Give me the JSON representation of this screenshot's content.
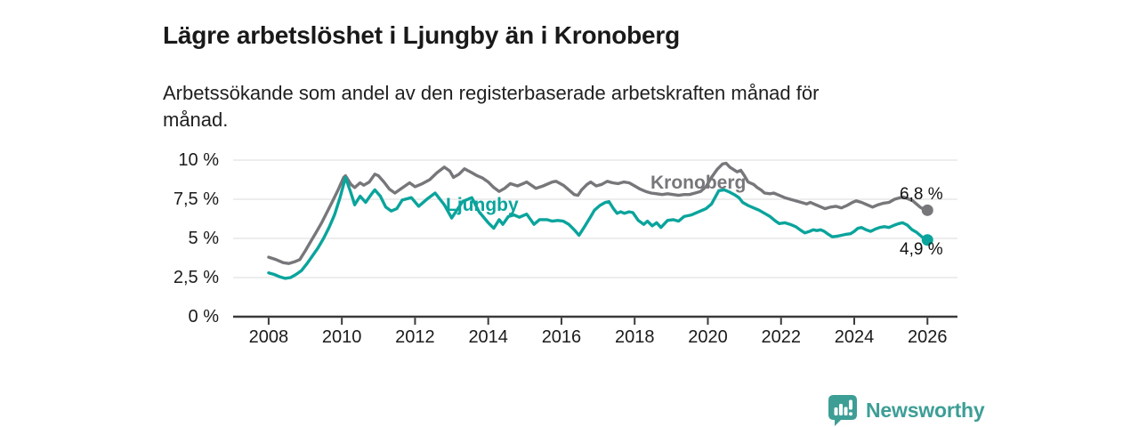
{
  "header": {
    "title": "Lägre arbetslöshet i Ljungby än i Kronoberg",
    "subtitle_line1": "Arbetssökande som andel av den registerbaserade arbetskraften månad för",
    "subtitle_line2": "månad."
  },
  "chart_data": {
    "type": "line",
    "title": "Lägre arbetslöshet i Ljungby än i Kronoberg",
    "subtitle": "Arbetssökande som andel av den registerbaserade arbetskraften månad för månad.",
    "unit": "%",
    "grid": true,
    "legend_position": "inline-labels-on-lines",
    "x_axis": {
      "range": [
        2007.03,
        2026.82
      ],
      "ticks": [
        2008,
        2010,
        2012,
        2014,
        2016,
        2018,
        2020,
        2022,
        2024,
        2026
      ],
      "tick_labels": [
        "2008",
        "2010",
        "2012",
        "2014",
        "2016",
        "2018",
        "2020",
        "2022",
        "2024",
        "2026"
      ]
    },
    "y_axis": {
      "range": [
        0,
        10
      ],
      "ticks": [
        0,
        2.5,
        5,
        7.5,
        10
      ],
      "tick_labels": [
        "0 %",
        "2,5 %",
        "5 %",
        "7,5 %",
        "10 %"
      ]
    },
    "colors": {
      "kronoberg": "#77777b",
      "ljungby": "#0aa49c",
      "grid": "#e2e2e2",
      "axis": "#3a3a3a"
    },
    "series": [
      {
        "name": "Kronoberg",
        "color": "#77777b",
        "end_value": 6.8,
        "end_label": "6,8 %",
        "points": [
          [
            2008.0,
            3.8
          ],
          [
            2008.2,
            3.65
          ],
          [
            2008.4,
            3.45
          ],
          [
            2008.55,
            3.4
          ],
          [
            2008.7,
            3.5
          ],
          [
            2008.85,
            3.65
          ],
          [
            2009.0,
            4.2
          ],
          [
            2009.15,
            4.8
          ],
          [
            2009.3,
            5.4
          ],
          [
            2009.45,
            6.0
          ],
          [
            2009.6,
            6.7
          ],
          [
            2009.75,
            7.4
          ],
          [
            2009.9,
            8.1
          ],
          [
            2010.05,
            8.9
          ],
          [
            2010.1,
            9.0
          ],
          [
            2010.25,
            8.45
          ],
          [
            2010.35,
            8.25
          ],
          [
            2010.5,
            8.55
          ],
          [
            2010.6,
            8.4
          ],
          [
            2010.75,
            8.6
          ],
          [
            2010.9,
            9.1
          ],
          [
            2011.0,
            9.0
          ],
          [
            2011.15,
            8.6
          ],
          [
            2011.3,
            8.15
          ],
          [
            2011.45,
            7.9
          ],
          [
            2011.6,
            8.15
          ],
          [
            2011.85,
            8.55
          ],
          [
            2012.0,
            8.3
          ],
          [
            2012.2,
            8.5
          ],
          [
            2012.4,
            8.75
          ],
          [
            2012.6,
            9.2
          ],
          [
            2012.8,
            9.55
          ],
          [
            2012.95,
            9.3
          ],
          [
            2013.05,
            8.9
          ],
          [
            2013.2,
            9.1
          ],
          [
            2013.35,
            9.45
          ],
          [
            2013.55,
            9.2
          ],
          [
            2013.7,
            9.0
          ],
          [
            2013.85,
            8.85
          ],
          [
            2014.0,
            8.6
          ],
          [
            2014.15,
            8.25
          ],
          [
            2014.3,
            8.0
          ],
          [
            2014.45,
            8.2
          ],
          [
            2014.6,
            8.5
          ],
          [
            2014.8,
            8.35
          ],
          [
            2014.95,
            8.5
          ],
          [
            2015.05,
            8.6
          ],
          [
            2015.3,
            8.2
          ],
          [
            2015.5,
            8.35
          ],
          [
            2015.75,
            8.6
          ],
          [
            2015.85,
            8.65
          ],
          [
            2016.05,
            8.4
          ],
          [
            2016.2,
            8.1
          ],
          [
            2016.35,
            7.8
          ],
          [
            2016.45,
            7.75
          ],
          [
            2016.55,
            8.1
          ],
          [
            2016.7,
            8.45
          ],
          [
            2016.8,
            8.6
          ],
          [
            2016.95,
            8.35
          ],
          [
            2017.1,
            8.45
          ],
          [
            2017.25,
            8.65
          ],
          [
            2017.4,
            8.55
          ],
          [
            2017.55,
            8.5
          ],
          [
            2017.7,
            8.6
          ],
          [
            2017.85,
            8.55
          ],
          [
            2018.0,
            8.35
          ],
          [
            2018.15,
            8.15
          ],
          [
            2018.3,
            8.0
          ],
          [
            2018.45,
            7.9
          ],
          [
            2018.6,
            7.85
          ],
          [
            2018.75,
            7.8
          ],
          [
            2018.9,
            7.85
          ],
          [
            2019.05,
            7.8
          ],
          [
            2019.2,
            7.75
          ],
          [
            2019.35,
            7.8
          ],
          [
            2019.5,
            7.8
          ],
          [
            2019.65,
            7.9
          ],
          [
            2019.8,
            8.0
          ],
          [
            2019.95,
            8.3
          ],
          [
            2020.1,
            8.9
          ],
          [
            2020.25,
            9.4
          ],
          [
            2020.4,
            9.75
          ],
          [
            2020.5,
            9.8
          ],
          [
            2020.6,
            9.55
          ],
          [
            2020.7,
            9.4
          ],
          [
            2020.8,
            9.25
          ],
          [
            2020.9,
            9.35
          ],
          [
            2021.0,
            9.0
          ],
          [
            2021.1,
            8.6
          ],
          [
            2021.25,
            8.45
          ],
          [
            2021.35,
            8.25
          ],
          [
            2021.45,
            8.1
          ],
          [
            2021.55,
            7.9
          ],
          [
            2021.7,
            7.85
          ],
          [
            2021.8,
            7.9
          ],
          [
            2021.95,
            7.75
          ],
          [
            2022.1,
            7.6
          ],
          [
            2022.25,
            7.5
          ],
          [
            2022.4,
            7.4
          ],
          [
            2022.55,
            7.3
          ],
          [
            2022.7,
            7.2
          ],
          [
            2022.8,
            7.3
          ],
          [
            2022.95,
            7.15
          ],
          [
            2023.1,
            7.0
          ],
          [
            2023.2,
            6.9
          ],
          [
            2023.35,
            7.0
          ],
          [
            2023.5,
            7.05
          ],
          [
            2023.65,
            6.95
          ],
          [
            2023.8,
            7.1
          ],
          [
            2023.95,
            7.3
          ],
          [
            2024.05,
            7.4
          ],
          [
            2024.2,
            7.3
          ],
          [
            2024.35,
            7.15
          ],
          [
            2024.5,
            7.0
          ],
          [
            2024.65,
            7.15
          ],
          [
            2024.8,
            7.25
          ],
          [
            2024.95,
            7.3
          ],
          [
            2025.1,
            7.5
          ],
          [
            2025.25,
            7.6
          ],
          [
            2025.35,
            7.65
          ],
          [
            2025.5,
            7.5
          ],
          [
            2025.6,
            7.4
          ],
          [
            2025.7,
            7.2
          ],
          [
            2025.8,
            7.0
          ],
          [
            2025.9,
            6.85
          ],
          [
            2026.0,
            6.8
          ]
        ]
      },
      {
        "name": "Ljungby",
        "color": "#0aa49c",
        "end_value": 4.9,
        "end_label": "4,9 %",
        "points": [
          [
            2008.0,
            2.8
          ],
          [
            2008.15,
            2.7
          ],
          [
            2008.3,
            2.55
          ],
          [
            2008.45,
            2.45
          ],
          [
            2008.6,
            2.5
          ],
          [
            2008.75,
            2.7
          ],
          [
            2008.9,
            2.95
          ],
          [
            2009.05,
            3.4
          ],
          [
            2009.2,
            3.9
          ],
          [
            2009.35,
            4.4
          ],
          [
            2009.5,
            5.0
          ],
          [
            2009.65,
            5.7
          ],
          [
            2009.8,
            6.5
          ],
          [
            2009.95,
            7.6
          ],
          [
            2010.1,
            8.9
          ],
          [
            2010.25,
            7.9
          ],
          [
            2010.35,
            7.15
          ],
          [
            2010.5,
            7.7
          ],
          [
            2010.65,
            7.3
          ],
          [
            2010.8,
            7.8
          ],
          [
            2010.9,
            8.1
          ],
          [
            2011.05,
            7.7
          ],
          [
            2011.2,
            7.0
          ],
          [
            2011.35,
            6.75
          ],
          [
            2011.5,
            6.9
          ],
          [
            2011.65,
            7.45
          ],
          [
            2011.9,
            7.6
          ],
          [
            2012.1,
            7.05
          ],
          [
            2012.35,
            7.55
          ],
          [
            2012.55,
            7.9
          ],
          [
            2012.8,
            7.15
          ],
          [
            2013.0,
            6.3
          ],
          [
            2013.3,
            7.35
          ],
          [
            2013.55,
            7.6
          ],
          [
            2013.75,
            6.7
          ],
          [
            2014.0,
            6.0
          ],
          [
            2014.15,
            5.65
          ],
          [
            2014.3,
            6.2
          ],
          [
            2014.4,
            5.9
          ],
          [
            2014.55,
            6.4
          ],
          [
            2014.7,
            6.5
          ],
          [
            2014.85,
            6.35
          ],
          [
            2015.05,
            6.55
          ],
          [
            2015.25,
            5.9
          ],
          [
            2015.4,
            6.2
          ],
          [
            2015.6,
            6.2
          ],
          [
            2015.75,
            6.1
          ],
          [
            2015.9,
            6.15
          ],
          [
            2016.05,
            6.1
          ],
          [
            2016.2,
            5.9
          ],
          [
            2016.35,
            5.55
          ],
          [
            2016.48,
            5.2
          ],
          [
            2016.63,
            5.75
          ],
          [
            2016.8,
            6.4
          ],
          [
            2016.9,
            6.8
          ],
          [
            2017.05,
            7.1
          ],
          [
            2017.2,
            7.3
          ],
          [
            2017.3,
            7.35
          ],
          [
            2017.42,
            6.9
          ],
          [
            2017.52,
            6.6
          ],
          [
            2017.62,
            6.7
          ],
          [
            2017.72,
            6.6
          ],
          [
            2017.85,
            6.7
          ],
          [
            2017.95,
            6.65
          ],
          [
            2018.1,
            6.15
          ],
          [
            2018.25,
            5.9
          ],
          [
            2018.35,
            6.1
          ],
          [
            2018.48,
            5.8
          ],
          [
            2018.6,
            6.0
          ],
          [
            2018.72,
            5.7
          ],
          [
            2018.9,
            6.15
          ],
          [
            2019.05,
            6.2
          ],
          [
            2019.2,
            6.1
          ],
          [
            2019.35,
            6.4
          ],
          [
            2019.55,
            6.5
          ],
          [
            2019.75,
            6.7
          ],
          [
            2019.95,
            6.9
          ],
          [
            2020.1,
            7.2
          ],
          [
            2020.3,
            8.05
          ],
          [
            2020.45,
            8.1
          ],
          [
            2020.6,
            7.95
          ],
          [
            2020.72,
            7.8
          ],
          [
            2020.85,
            7.6
          ],
          [
            2020.95,
            7.3
          ],
          [
            2021.1,
            7.1
          ],
          [
            2021.25,
            6.95
          ],
          [
            2021.4,
            6.8
          ],
          [
            2021.55,
            6.6
          ],
          [
            2021.7,
            6.4
          ],
          [
            2021.85,
            6.1
          ],
          [
            2021.95,
            5.95
          ],
          [
            2022.1,
            6.0
          ],
          [
            2022.25,
            5.9
          ],
          [
            2022.4,
            5.75
          ],
          [
            2022.55,
            5.5
          ],
          [
            2022.65,
            5.35
          ],
          [
            2022.78,
            5.45
          ],
          [
            2022.88,
            5.55
          ],
          [
            2022.98,
            5.5
          ],
          [
            2023.08,
            5.55
          ],
          [
            2023.18,
            5.45
          ],
          [
            2023.3,
            5.25
          ],
          [
            2023.4,
            5.1
          ],
          [
            2023.55,
            5.15
          ],
          [
            2023.75,
            5.25
          ],
          [
            2023.9,
            5.3
          ],
          [
            2024.0,
            5.45
          ],
          [
            2024.1,
            5.65
          ],
          [
            2024.2,
            5.7
          ],
          [
            2024.32,
            5.55
          ],
          [
            2024.45,
            5.45
          ],
          [
            2024.58,
            5.6
          ],
          [
            2024.7,
            5.7
          ],
          [
            2024.82,
            5.75
          ],
          [
            2024.95,
            5.7
          ],
          [
            2025.1,
            5.85
          ],
          [
            2025.22,
            5.95
          ],
          [
            2025.32,
            6.0
          ],
          [
            2025.45,
            5.85
          ],
          [
            2025.58,
            5.55
          ],
          [
            2025.7,
            5.4
          ],
          [
            2025.8,
            5.2
          ],
          [
            2025.9,
            5.0
          ],
          [
            2026.0,
            4.9
          ]
        ]
      }
    ]
  },
  "branding": {
    "logo_text": "Newsworthy",
    "logo_color": "#3d9e96",
    "logo_icon": "bar-chart-speech-bubble-icon"
  }
}
